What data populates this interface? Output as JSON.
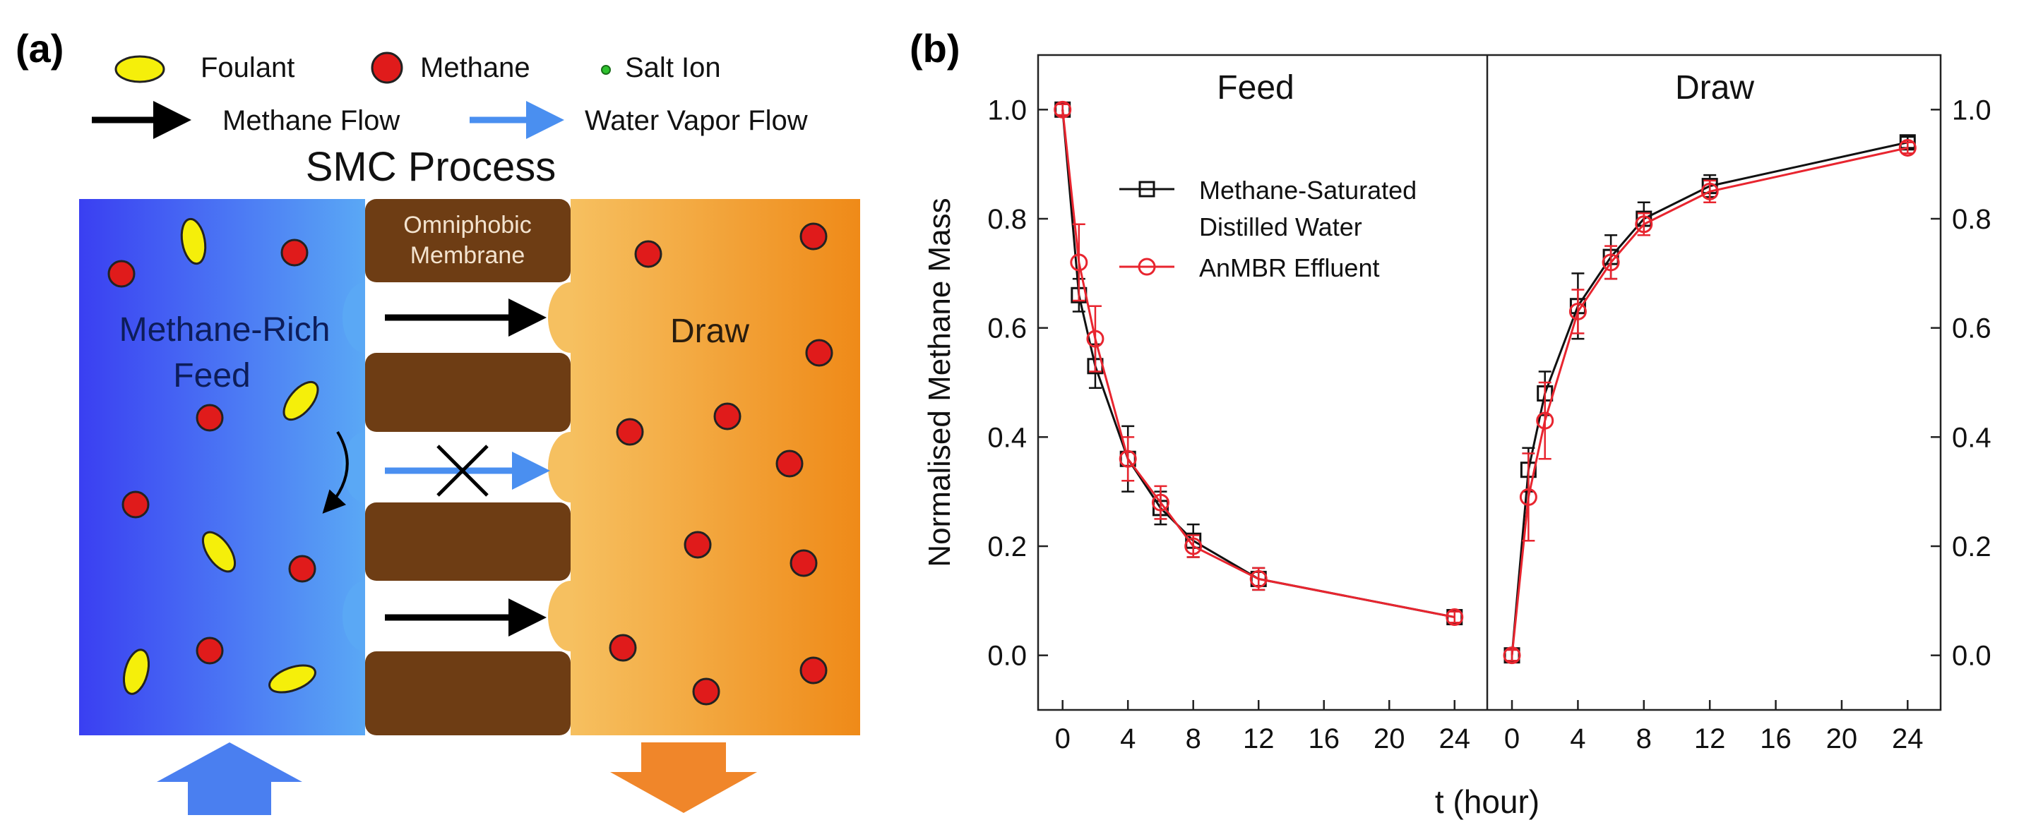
{
  "panel_a": {
    "label": "(a)",
    "legend": {
      "foulant": "Foulant",
      "methane": "Methane",
      "salt_ion": "Salt Ion",
      "methane_flow": "Methane Flow",
      "water_vapor_flow": "Water Vapor Flow"
    },
    "title": "SMC Process",
    "membrane_label_line1": "Omniphobic",
    "membrane_label_line2": "Membrane",
    "feed_label_line1": "Methane-Rich",
    "feed_label_line2": "Feed",
    "draw_label": "Draw",
    "colors": {
      "feed_left": "#3a3ff2",
      "feed_right": "#5aa8f5",
      "draw_left": "#f6c060",
      "draw_right": "#ef8a18",
      "membrane": "#6e3d14",
      "methane": "#e01b1b",
      "foulant": "#f5ef0a",
      "feed_arrow": "#4a7ff0",
      "draw_arrow": "#f0862a"
    }
  },
  "panel_b": {
    "label": "(b)"
  },
  "chart_data": [
    {
      "type": "line",
      "title": "Feed",
      "xlabel": "t (hour)",
      "ylabel": "Normalised Methane Mass",
      "xlim": [
        -1.5,
        26
      ],
      "ylim": [
        -0.1,
        1.1
      ],
      "xticks": [
        "0",
        "4",
        "8",
        "12",
        "16",
        "20",
        "24"
      ],
      "yticks": [
        "0.0",
        "0.2",
        "0.4",
        "0.6",
        "0.8",
        "1.0"
      ],
      "grid": false,
      "legend_position": "upper-middle",
      "series": [
        {
          "name": "Methane-Saturated Distilled Water",
          "legend_line1": "Methane-Saturated",
          "legend_line2": "Distilled Water",
          "color": "#111111",
          "marker": "square",
          "x": [
            0,
            1,
            2,
            4,
            6,
            8,
            12,
            24
          ],
          "y": [
            1.0,
            0.66,
            0.53,
            0.36,
            0.27,
            0.21,
            0.14,
            0.07
          ],
          "err": [
            0.01,
            0.03,
            0.04,
            0.06,
            0.03,
            0.03,
            0.02,
            0.01
          ]
        },
        {
          "name": "AnMBR Effluent",
          "legend_line1": "AnMBR Effluent",
          "color": "#e8252f",
          "marker": "circle",
          "x": [
            0,
            1,
            2,
            4,
            6,
            8,
            12,
            24
          ],
          "y": [
            1.0,
            0.72,
            0.58,
            0.36,
            0.28,
            0.2,
            0.14,
            0.07
          ],
          "err": [
            0.01,
            0.07,
            0.06,
            0.04,
            0.03,
            0.02,
            0.02,
            0.01
          ]
        }
      ]
    },
    {
      "type": "line",
      "title": "Draw",
      "xlabel": "t (hour)",
      "ylabel": "",
      "xlim": [
        -1.5,
        26
      ],
      "ylim": [
        -0.1,
        1.1
      ],
      "xticks": [
        "0",
        "4",
        "8",
        "12",
        "16",
        "20",
        "24"
      ],
      "yticks": [
        "0.0",
        "0.2",
        "0.4",
        "0.6",
        "0.8",
        "1.0"
      ],
      "grid": false,
      "series": [
        {
          "name": "Methane-Saturated Distilled Water",
          "color": "#111111",
          "marker": "square",
          "x": [
            0,
            1,
            2,
            4,
            6,
            8,
            12,
            24
          ],
          "y": [
            0.0,
            0.34,
            0.48,
            0.64,
            0.73,
            0.8,
            0.86,
            0.94
          ],
          "err": [
            0.01,
            0.04,
            0.04,
            0.06,
            0.04,
            0.03,
            0.02,
            0.01
          ]
        },
        {
          "name": "AnMBR Effluent",
          "color": "#e8252f",
          "marker": "circle",
          "x": [
            0,
            1,
            2,
            4,
            6,
            8,
            12,
            24
          ],
          "y": [
            0.0,
            0.29,
            0.43,
            0.63,
            0.72,
            0.79,
            0.85,
            0.93
          ],
          "err": [
            0.01,
            0.08,
            0.07,
            0.04,
            0.03,
            0.02,
            0.02,
            0.01
          ]
        }
      ]
    }
  ]
}
